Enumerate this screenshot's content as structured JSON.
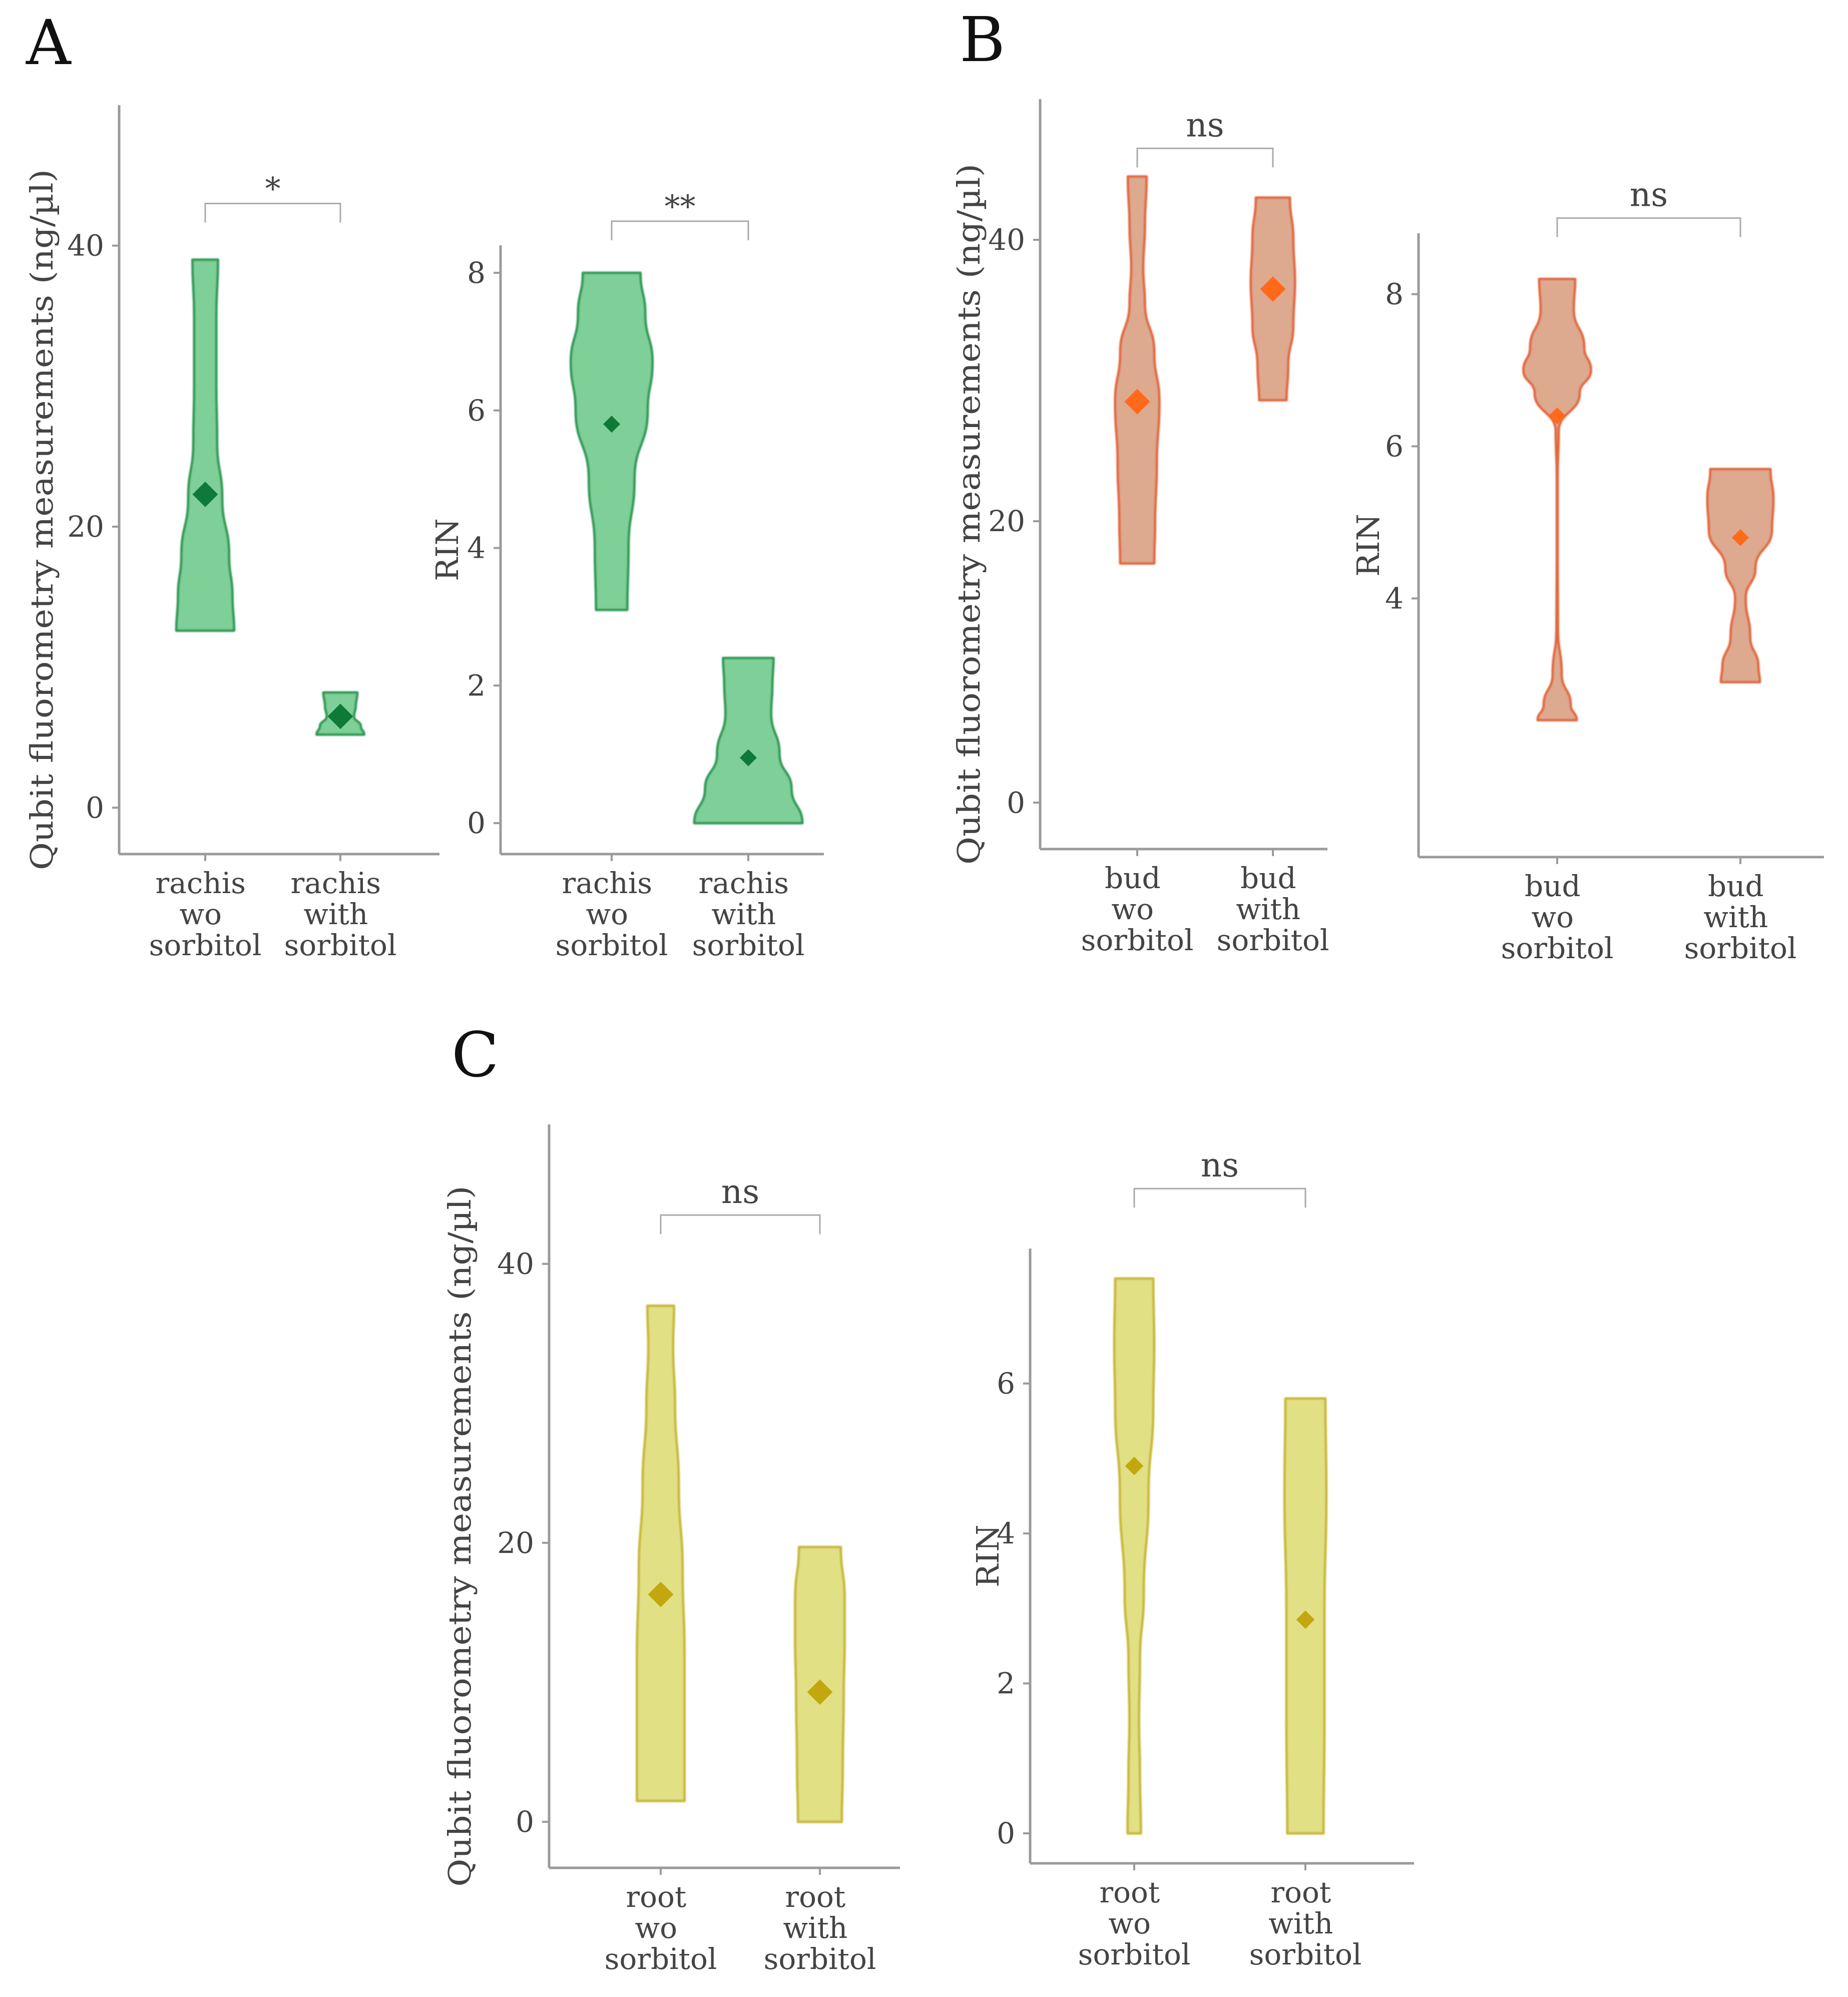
{
  "panels": [
    {
      "letter": "A"
    },
    {
      "letter": "B"
    },
    {
      "letter": "C"
    }
  ],
  "colors": {
    "rachis_fill": "#7fcf98",
    "rachis_edge": "#2f9a55",
    "rachis_mean": "#0e7a38",
    "bud_fill": "#dda98f",
    "bud_edge": "#e2683e",
    "bud_mean": "#ff6a1a",
    "root_fill": "#e2e085",
    "root_edge": "#c8b837",
    "root_mean": "#c2a80e",
    "axis": "#9a9a9a",
    "text": "#444444"
  },
  "chart_data": [
    {
      "id": "A-qubit",
      "panel": "A",
      "type": "violin",
      "scheme": "rachis",
      "ylabel": "Qubit fluorometry measurements (ng/µl)",
      "ylim": [
        -3.3,
        50
      ],
      "yticks": [
        0,
        20,
        40
      ],
      "categories": [
        [
          "rachis",
          "wo",
          "sorbitol"
        ],
        [
          "rachis",
          "with",
          "sorbitol"
        ]
      ],
      "violins": [
        {
          "range": [
            12.6,
            39
          ],
          "mean": 22.3,
          "profile": [
            [
              12.6,
              0.34
            ],
            [
              15,
              0.32
            ],
            [
              18,
              0.28
            ],
            [
              22,
              0.2
            ],
            [
              26,
              0.14
            ],
            [
              30,
              0.13
            ],
            [
              35,
              0.13
            ],
            [
              39,
              0.15
            ]
          ]
        },
        {
          "range": [
            5.2,
            8.2
          ],
          "mean": 6.5,
          "profile": [
            [
              5.2,
              0.28
            ],
            [
              5.8,
              0.24
            ],
            [
              6.5,
              0.16
            ],
            [
              7.2,
              0.18
            ],
            [
              8.2,
              0.2
            ]
          ]
        }
      ],
      "significance": {
        "label": "*",
        "level": 43
      }
    },
    {
      "id": "A-rin",
      "panel": "A",
      "type": "violin",
      "scheme": "rachis",
      "ylabel": "RIN",
      "ylim": [
        -0.45,
        8.4
      ],
      "yticks": [
        0,
        2,
        4,
        6,
        8
      ],
      "categories": [
        [
          "rachis",
          "wo",
          "sorbitol"
        ],
        [
          "rachis",
          "with",
          "sorbitol"
        ]
      ],
      "violins": [
        {
          "range": [
            3.1,
            8
          ],
          "mean": 5.8,
          "profile": [
            [
              3.1,
              0.13
            ],
            [
              4,
              0.14
            ],
            [
              5,
              0.19
            ],
            [
              6,
              0.3
            ],
            [
              6.7,
              0.34
            ],
            [
              7.4,
              0.28
            ],
            [
              8,
              0.24
            ]
          ]
        },
        {
          "range": [
            0,
            2.4
          ],
          "mean": 0.95,
          "profile": [
            [
              0,
              0.45
            ],
            [
              0.5,
              0.36
            ],
            [
              1.0,
              0.26
            ],
            [
              1.6,
              0.19
            ],
            [
              2.0,
              0.2
            ],
            [
              2.4,
              0.21
            ]
          ]
        }
      ],
      "significance": {
        "label": "**",
        "level": 8.75
      }
    },
    {
      "id": "B-qubit",
      "panel": "B",
      "type": "violin",
      "scheme": "bud",
      "ylabel": "Qubit fluorometry measurements (ng/µl)",
      "ylim": [
        -3.3,
        50
      ],
      "yticks": [
        0,
        20,
        40
      ],
      "categories": [
        [
          "bud",
          "wo",
          "sorbitol"
        ],
        [
          "bud",
          "with",
          "sorbitol"
        ]
      ],
      "violins": [
        {
          "range": [
            17,
            44.5
          ],
          "mean": 28.5,
          "profile": [
            [
              17,
              0.2
            ],
            [
              20,
              0.21
            ],
            [
              24,
              0.23
            ],
            [
              28.5,
              0.26
            ],
            [
              32,
              0.2
            ],
            [
              35.5,
              0.09
            ],
            [
              38,
              0.07
            ],
            [
              41,
              0.09
            ],
            [
              44.5,
              0.11
            ]
          ]
        },
        {
          "range": [
            28.6,
            43
          ],
          "mean": 36.5,
          "profile": [
            [
              28.6,
              0.16
            ],
            [
              31,
              0.18
            ],
            [
              34,
              0.24
            ],
            [
              37,
              0.26
            ],
            [
              40,
              0.24
            ],
            [
              43,
              0.2
            ]
          ]
        }
      ],
      "significance": {
        "label": "ns",
        "level": 46.5
      }
    },
    {
      "id": "B-rin",
      "panel": "B",
      "type": "violin",
      "scheme": "bud",
      "ylabel": "RIN",
      "ylim": [
        0.6,
        8.8
      ],
      "yticks": [
        4,
        6,
        8
      ],
      "categories": [
        [
          "bud",
          "wo",
          "sorbitol"
        ],
        [
          "bud",
          "with",
          "sorbitol"
        ]
      ],
      "violins": [
        {
          "range": [
            2.4,
            8.2
          ],
          "mean": 6.4,
          "profile": [
            [
              2.4,
              0.26
            ],
            [
              2.6,
              0.18
            ],
            [
              3.0,
              0.06
            ],
            [
              3.6,
              0.01
            ],
            [
              4.5,
              0.005
            ],
            [
              5.6,
              0.005
            ],
            [
              6.2,
              0.02
            ],
            [
              6.7,
              0.3
            ],
            [
              7.0,
              0.45
            ],
            [
              7.3,
              0.36
            ],
            [
              7.8,
              0.22
            ],
            [
              8.2,
              0.24
            ]
          ]
        },
        {
          "range": [
            2.9,
            5.7
          ],
          "mean": 4.8,
          "profile": [
            [
              2.9,
              0.26
            ],
            [
              3.1,
              0.24
            ],
            [
              3.5,
              0.13
            ],
            [
              4.0,
              0.07
            ],
            [
              4.4,
              0.2
            ],
            [
              4.9,
              0.42
            ],
            [
              5.3,
              0.44
            ],
            [
              5.7,
              0.4
            ]
          ]
        }
      ],
      "significance": {
        "label": "ns",
        "level": 9.0
      }
    },
    {
      "id": "C-qubit",
      "panel": "C",
      "type": "violin",
      "scheme": "root",
      "ylabel": "Qubit fluorometry measurements (ng/µl)",
      "ylim": [
        -3.3,
        50
      ],
      "yticks": [
        0,
        20,
        40
      ],
      "categories": [
        [
          "root",
          "wo",
          "sorbitol"
        ],
        [
          "root",
          "with",
          "sorbitol"
        ]
      ],
      "violins": [
        {
          "range": [
            1.5,
            37
          ],
          "mean": 16.3,
          "profile": [
            [
              1.5,
              0.25
            ],
            [
              6,
              0.25
            ],
            [
              12,
              0.25
            ],
            [
              18,
              0.23
            ],
            [
              24,
              0.19
            ],
            [
              30,
              0.15
            ],
            [
              34,
              0.13
            ],
            [
              37,
              0.14
            ]
          ]
        },
        {
          "range": [
            0,
            19.7
          ],
          "mean": 9.3,
          "profile": [
            [
              0,
              0.23
            ],
            [
              4,
              0.24
            ],
            [
              9,
              0.25
            ],
            [
              13,
              0.26
            ],
            [
              16,
              0.26
            ],
            [
              19.7,
              0.22
            ]
          ]
        }
      ],
      "significance": {
        "label": "ns",
        "level": 43.5
      }
    },
    {
      "id": "C-rin",
      "panel": "C",
      "type": "violin",
      "scheme": "root",
      "ylabel": "RIN",
      "ylim": [
        -0.4,
        7.8
      ],
      "yticks": [
        0,
        2,
        4,
        6
      ],
      "categories": [
        [
          "root",
          "wo",
          "sorbitol"
        ],
        [
          "root",
          "with",
          "sorbitol"
        ]
      ],
      "violins": [
        {
          "range": [
            0,
            7.4
          ],
          "mean": 4.9,
          "profile": [
            [
              0,
              0.07
            ],
            [
              0.8,
              0.06
            ],
            [
              1.5,
              0.05
            ],
            [
              2.3,
              0.06
            ],
            [
              3.2,
              0.1
            ],
            [
              4.5,
              0.15
            ],
            [
              5.7,
              0.2
            ],
            [
              6.5,
              0.21
            ],
            [
              7.4,
              0.2
            ]
          ]
        },
        {
          "range": [
            0,
            5.8
          ],
          "mean": 2.85,
          "profile": [
            [
              0,
              0.19
            ],
            [
              1.5,
              0.2
            ],
            [
              3,
              0.2
            ],
            [
              4.5,
              0.22
            ],
            [
              5.8,
              0.21
            ]
          ]
        }
      ],
      "significance": {
        "label": "ns",
        "level": 8.6
      }
    }
  ]
}
